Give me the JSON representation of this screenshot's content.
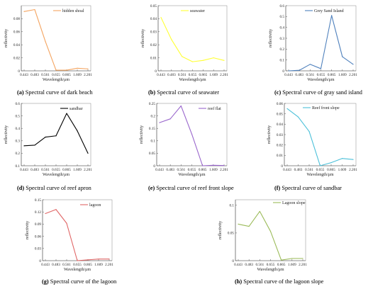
{
  "chart_data": [
    {
      "type": "line",
      "id": "a",
      "color": "#f4a460",
      "x": [
        "0.443",
        "0.483",
        "0.561",
        "0.655",
        "0.865",
        "1.609",
        "2.201"
      ],
      "series": [
        {
          "name": "hidden shoal",
          "values": [
            0.091,
            0.094,
            0.045,
            0.001,
            0.001,
            0.004,
            0.003
          ]
        }
      ],
      "ylim": [
        0,
        0.1
      ],
      "yticks": [
        "0",
        "0.02",
        "0.04",
        "0.06",
        "0.08"
      ],
      "ytick_values": [
        0,
        0.02,
        0.04,
        0.06,
        0.08
      ],
      "xlabel": "Wavelength/μm",
      "ylabel": "reflectivity",
      "caption_label": "(a)",
      "caption_text": " Spectral curve of dark beach"
    },
    {
      "type": "line",
      "id": "b",
      "color": "#ffff33",
      "x": [
        "0.443",
        "0.483",
        "0.561",
        "0.655",
        "0.865",
        "1.609",
        "2.201"
      ],
      "series": [
        {
          "name": "seawater",
          "values": [
            0.041,
            0.024,
            0.011,
            0.007,
            0.008,
            0.01,
            0.008
          ]
        }
      ],
      "ylim": [
        0,
        0.05
      ],
      "yticks": [
        "0",
        "0.01",
        "0.02",
        "0.03",
        "0.04",
        "0.05"
      ],
      "ytick_values": [
        0,
        0.01,
        0.02,
        0.03,
        0.04,
        0.05
      ],
      "xlabel": "Wavelength/μm",
      "ylabel": "reflectivity",
      "caption_label": "(b)",
      "caption_text": " Spectral curve of seawater"
    },
    {
      "type": "line",
      "id": "c",
      "color": "#4f81bd",
      "x": [
        "0.443",
        "0.483",
        "0.561",
        "0.655",
        "0.865",
        "1.609",
        "2.201"
      ],
      "series": [
        {
          "name": "Grey Sand Island",
          "values": [
            0.0,
            0.005,
            0.06,
            0.02,
            0.51,
            0.13,
            0.06
          ]
        }
      ],
      "ylim": [
        0,
        0.6
      ],
      "yticks": [
        "0",
        "0.1",
        "0.2",
        "0.3",
        "0.4",
        "0.5",
        "0.6"
      ],
      "ytick_values": [
        0,
        0.1,
        0.2,
        0.3,
        0.4,
        0.5,
        0.6
      ],
      "xlabel": "Wavelength/μm",
      "ylabel": "reflectivity",
      "caption_label": "(c)",
      "caption_text": " Spectral curve of gray sand island"
    },
    {
      "type": "line",
      "id": "d",
      "color": "#000000",
      "x": [
        "0.443",
        "0.483",
        "0.561",
        "0.655",
        "0.865",
        "1.609",
        "2.201"
      ],
      "series": [
        {
          "name": "sandbar",
          "values": [
            0.26,
            0.265,
            0.33,
            0.34,
            0.52,
            0.38,
            0.2
          ]
        }
      ],
      "ylim": [
        0.1,
        0.6
      ],
      "yticks": [
        "0.1",
        "0.2",
        "0.3",
        "0.4",
        "0.5",
        "0.6"
      ],
      "ytick_values": [
        0.1,
        0.2,
        0.3,
        0.4,
        0.5,
        0.6
      ],
      "xlabel": "Wavelength/μm",
      "ylabel": "reflectivity",
      "caption_label": "(d)",
      "caption_text": " Spectral curve of reef apron"
    },
    {
      "type": "line",
      "id": "e",
      "color": "#9966cc",
      "x": [
        "0.443",
        "0.483",
        "0.561",
        "0.655",
        "0.865",
        "1.609",
        "2.201"
      ],
      "series": [
        {
          "name": "reef flat",
          "values": [
            0.173,
            0.188,
            0.24,
            0.127,
            0.0,
            0.002,
            0.001
          ]
        }
      ],
      "ylim": [
        0,
        0.25
      ],
      "yticks": [
        "0",
        "0.05",
        "0.1",
        "0.15",
        "0.2",
        "0.25"
      ],
      "ytick_values": [
        0,
        0.05,
        0.1,
        0.15,
        0.2,
        0.25
      ],
      "xlabel": "Wavelength/μm",
      "ylabel": "reflectivity",
      "caption_label": "(e)",
      "caption_text": " Spectral curve of reef front slope"
    },
    {
      "type": "line",
      "id": "f",
      "color": "#4bc0d9",
      "x": [
        "0.443",
        "0.483",
        "0.561",
        "0.655",
        "0.865",
        "1.609",
        "2.201"
      ],
      "series": [
        {
          "name": "Reef front slope",
          "values": [
            0.055,
            0.047,
            0.033,
            0.0,
            0.003,
            0.007,
            0.006
          ]
        }
      ],
      "ylim": [
        0,
        0.06
      ],
      "yticks": [
        "0",
        "0.01",
        "0.02",
        "0.03",
        "0.04",
        "0.05",
        "0.06"
      ],
      "ytick_values": [
        0,
        0.01,
        0.02,
        0.03,
        0.04,
        0.05,
        0.06
      ],
      "xlabel": "Wavelength/μm",
      "ylabel": "reflectivity",
      "caption_label": "(f)",
      "caption_text": " Spectral curve of sandbar"
    },
    {
      "type": "line",
      "id": "g",
      "color": "#e06666",
      "x": [
        "0.443",
        "0.483",
        "0.561",
        "0.655",
        "0.865",
        "1.609",
        "2.201"
      ],
      "series": [
        {
          "name": "lagoon",
          "values": [
            0.116,
            0.126,
            0.092,
            0.0,
            0.002,
            0.004,
            0.004
          ]
        }
      ],
      "ylim": [
        0,
        0.15
      ],
      "yticks": [
        "0",
        "0.03",
        "0.06",
        "0.09",
        "0.12",
        "0.15"
      ],
      "ytick_values": [
        0,
        0.03,
        0.06,
        0.09,
        0.12,
        0.15
      ],
      "xlabel": "Wavelength/μm",
      "ylabel": "reflectivity",
      "caption_label": "(g)",
      "caption_text": " Spectral curve of the lagoon"
    },
    {
      "type": "line",
      "id": "h",
      "color": "#9bbb59",
      "x": [
        "0.443",
        "0.483",
        "0.561",
        "0.655",
        "0.865",
        "1.609",
        "2.201"
      ],
      "series": [
        {
          "name": "Lagoon slope",
          "values": [
            0.066,
            0.062,
            0.089,
            0.053,
            0.001,
            0.004,
            0.004
          ]
        }
      ],
      "ylim": [
        0,
        0.11
      ],
      "yticks": [
        "0",
        "0.05",
        "0.1"
      ],
      "ytick_values": [
        0,
        0.05,
        0.1
      ],
      "xlabel": "Wavelength/μm",
      "ylabel": "reflectivity",
      "caption_label": "(h)",
      "caption_text": " Spectral curve of the lagoon slope"
    }
  ]
}
